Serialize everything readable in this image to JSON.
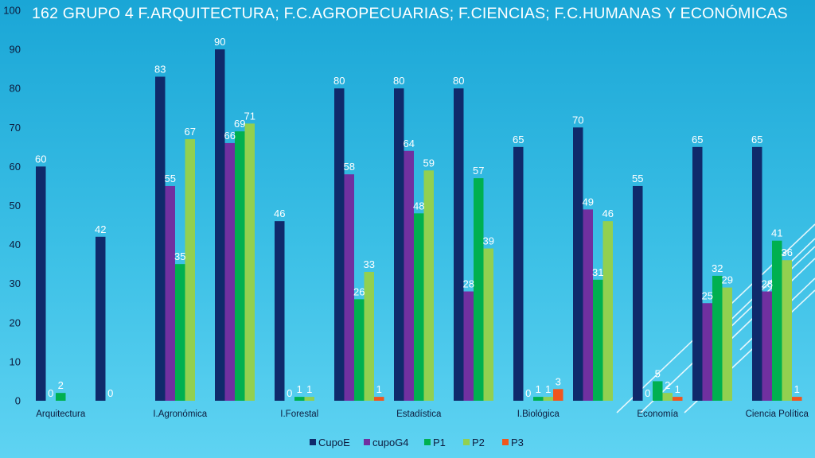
{
  "title": "162  GRUPO 4  F.ARQUITECTURA;  F.C.AGROPECUARIAS;  F.CIENCIAS;  F.C.HUMANAS Y ECONÓMICAS",
  "chart_data": {
    "type": "bar",
    "title": "162  GRUPO 4  F.ARQUITECTURA;  F.C.AGROPECUARIAS;  F.CIENCIAS;  F.C.HUMANAS Y ECONÓMICAS",
    "xlabel": "",
    "ylabel": "",
    "ylim": [
      0,
      100
    ],
    "yticks": [
      0,
      10,
      20,
      30,
      40,
      50,
      60,
      70,
      80,
      90,
      100
    ],
    "grid": false,
    "legend_position": "bottom",
    "categories": [
      "Arquitectura",
      "",
      "I.Agronómica",
      "",
      "I.Forestal",
      "",
      "Estadística",
      "",
      "I.Biológica",
      "",
      "Economía",
      "",
      "Ciencia Política"
    ],
    "series": [
      {
        "name": "CupoE",
        "color": "#0f2a6b",
        "values": [
          60,
          42,
          83,
          90,
          46,
          80,
          80,
          80,
          65,
          70,
          55,
          65,
          65
        ]
      },
      {
        "name": "cupoG4",
        "color": "#7030a0",
        "values": [
          null,
          null,
          55,
          66,
          null,
          58,
          64,
          28,
          null,
          49,
          null,
          25,
          28
        ]
      },
      {
        "name": "P1",
        "color": "#00b050",
        "values": [
          2,
          null,
          35,
          69,
          1,
          26,
          48,
          57,
          1,
          31,
          5,
          32,
          41
        ]
      },
      {
        "name": "P2",
        "color": "#92d050",
        "values": [
          null,
          null,
          67,
          71,
          1,
          33,
          59,
          39,
          1,
          46,
          2,
          29,
          36
        ]
      },
      {
        "name": "P3",
        "color": "#f0561e",
        "values": [
          null,
          null,
          null,
          null,
          null,
          1,
          null,
          null,
          3,
          null,
          1,
          null,
          1
        ]
      }
    ],
    "data_labels": [
      [
        {
          "s": 0,
          "t": "60"
        },
        {
          "s": 1,
          "t": "0"
        },
        {
          "s": 2,
          "t": "2"
        }
      ],
      [
        {
          "s": 0,
          "t": "42"
        },
        {
          "s": 1,
          "t": "0"
        }
      ],
      [
        {
          "s": 0,
          "t": "83"
        },
        {
          "s": 1,
          "t": "55"
        },
        {
          "s": 2,
          "t": "35"
        },
        {
          "s": 3,
          "t": "67"
        }
      ],
      [
        {
          "s": 0,
          "t": "90"
        },
        {
          "s": 1,
          "t": "66"
        },
        {
          "s": 2,
          "t": "69"
        },
        {
          "s": 3,
          "t": "71"
        }
      ],
      [
        {
          "s": 0,
          "t": "46"
        },
        {
          "s": 1,
          "t": "0"
        },
        {
          "s": 2,
          "t": "1"
        },
        {
          "s": 3,
          "t": "1"
        }
      ],
      [
        {
          "s": 0,
          "t": "80"
        },
        {
          "s": 1,
          "t": "58"
        },
        {
          "s": 2,
          "t": "26"
        },
        {
          "s": 3,
          "t": "33"
        },
        {
          "s": 4,
          "t": "1"
        }
      ],
      [
        {
          "s": 0,
          "t": "80"
        },
        {
          "s": 1,
          "t": "64"
        },
        {
          "s": 2,
          "t": "48"
        },
        {
          "s": 3,
          "t": "59"
        }
      ],
      [
        {
          "s": 0,
          "t": "80"
        },
        {
          "s": 1,
          "t": "28"
        },
        {
          "s": 2,
          "t": "57"
        },
        {
          "s": 3,
          "t": "39"
        }
      ],
      [
        {
          "s": 0,
          "t": "65"
        },
        {
          "s": 1,
          "t": "0"
        },
        {
          "s": 2,
          "t": "1"
        },
        {
          "s": 3,
          "t": "1"
        },
        {
          "s": 4,
          "t": "3"
        }
      ],
      [
        {
          "s": 0,
          "t": "70"
        },
        {
          "s": 1,
          "t": "49"
        },
        {
          "s": 2,
          "t": "31"
        },
        {
          "s": 3,
          "t": "46"
        }
      ],
      [
        {
          "s": 0,
          "t": "55"
        },
        {
          "s": 1,
          "t": "0"
        },
        {
          "s": 2,
          "t": "5"
        },
        {
          "s": 3,
          "t": "2"
        },
        {
          "s": 4,
          "t": "1"
        }
      ],
      [
        {
          "s": 0,
          "t": "65"
        },
        {
          "s": 1,
          "t": "25"
        },
        {
          "s": 2,
          "t": "32"
        },
        {
          "s": 3,
          "t": "29"
        }
      ],
      [
        {
          "s": 0,
          "t": "65"
        },
        {
          "s": 1,
          "t": "28"
        },
        {
          "s": 2,
          "t": "41"
        },
        {
          "s": 3,
          "t": "36"
        },
        {
          "s": 4,
          "t": "1"
        }
      ]
    ]
  }
}
